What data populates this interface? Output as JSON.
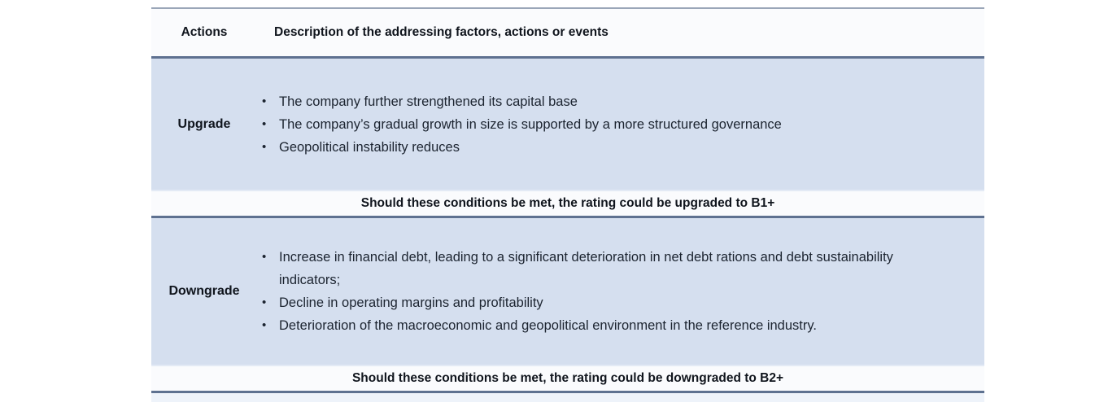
{
  "table": {
    "columns": {
      "actions": "Actions",
      "description": "Description of the addressing factors, actions or events"
    },
    "rows": [
      {
        "action": "Upgrade",
        "bullets": [
          "The company further strengthened its capital base",
          "The company’s gradual growth in size is supported by a more structured governance",
          "Geopolitical instability reduces"
        ],
        "outcome": "Should these conditions be met, the rating could be upgraded to B1+"
      },
      {
        "action": "Downgrade",
        "bullets": [
          "Increase in financial debt, leading to a significant deterioration in net debt rations and debt sustainability indicators;",
          "Decline in operating margins and profitability",
          "Deterioration of the macroeconomic and geopolitical environment in the reference industry."
        ],
        "outcome": "Should these conditions be met, the rating could be downgraded to B2+"
      }
    ],
    "bullet_glyph": "•",
    "colors": {
      "body_row_background": "#d5dfef",
      "header_background": "#fafbfd",
      "heavy_border": "#5e7190",
      "top_border": "#9aa6b8"
    }
  }
}
